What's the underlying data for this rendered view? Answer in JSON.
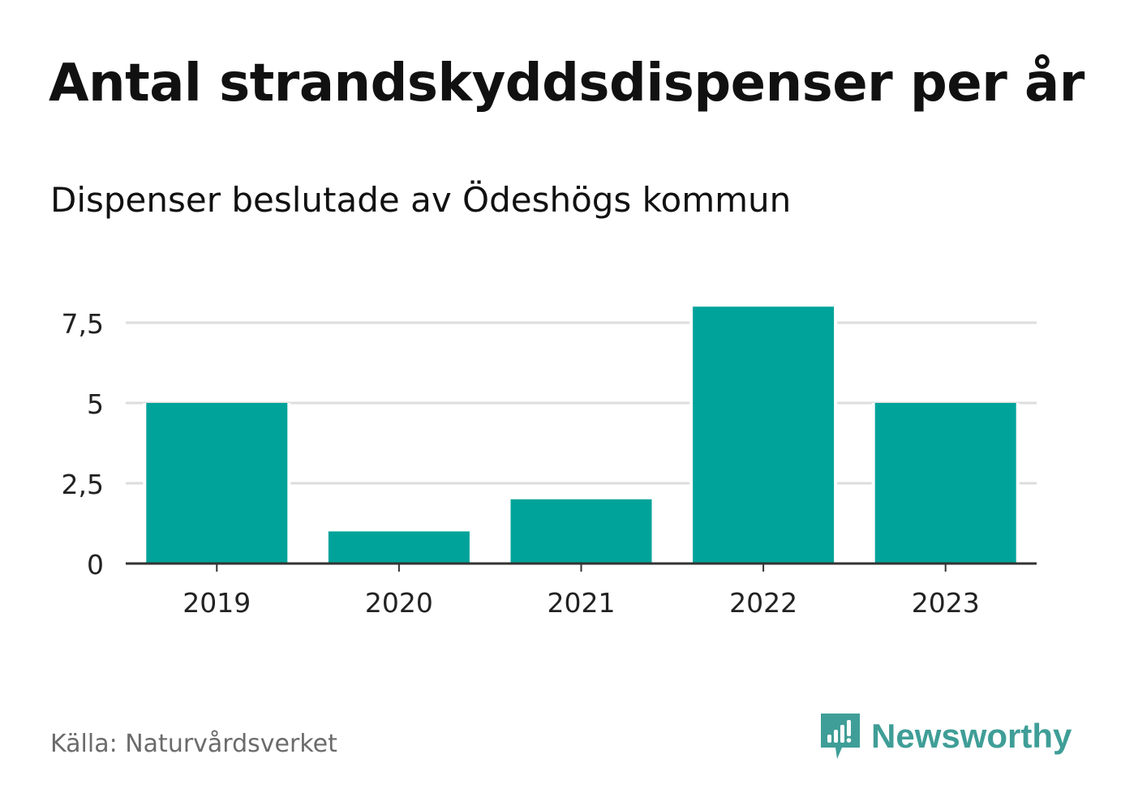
{
  "title": "Antal strandskyddsdispenser per år",
  "subtitle": "Dispenser beslutade av Ödeshögs kommun",
  "source": "Källa: Naturvårdsverket",
  "brand": {
    "name": "Newsworthy",
    "icon": "newsworthy-logo-icon",
    "color": "#3f9e97"
  },
  "colors": {
    "bar": "#00a39a",
    "grid": "#dddddd",
    "axis": "#333333"
  },
  "chart_data": {
    "type": "bar",
    "categories": [
      "2019",
      "2020",
      "2021",
      "2022",
      "2023"
    ],
    "values": [
      5,
      1,
      2,
      8,
      5
    ],
    "yticks": [
      0,
      2.5,
      5,
      7.5
    ],
    "ytick_labels": [
      "0",
      "2,5",
      "5",
      "7,5"
    ],
    "ylim": [
      0,
      8
    ],
    "grid": true,
    "xlabel": "",
    "ylabel": ""
  }
}
